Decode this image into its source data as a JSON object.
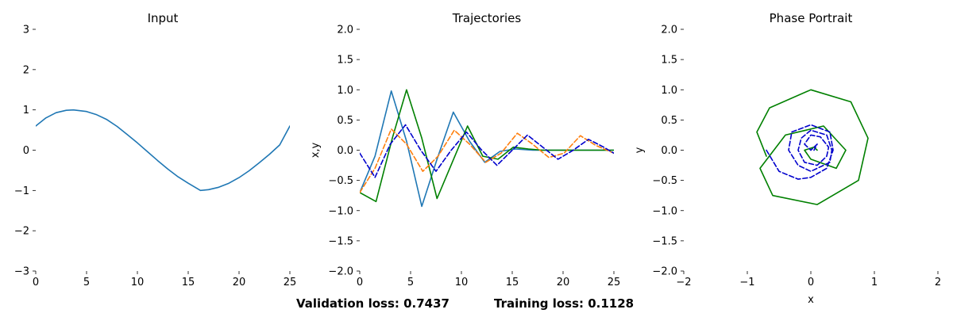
{
  "footer": {
    "validation": "Validation loss: 0.7437",
    "training": "Training loss: 0.1128"
  },
  "chart_data": [
    {
      "type": "line",
      "title": "Input",
      "xlabel": "",
      "ylabel": "",
      "xlim": [
        0,
        25
      ],
      "ylim": [
        -3,
        3
      ],
      "xticks": [
        0,
        5,
        10,
        15,
        20,
        25
      ],
      "xtick_labels": [
        "0",
        "5",
        "10",
        "15",
        "20",
        "25"
      ],
      "yticks": [
        -3,
        -2,
        -1,
        0,
        1,
        2,
        3
      ],
      "ytick_labels": [
        "−3",
        "−2",
        "−1",
        "0",
        "1",
        "2",
        "3"
      ],
      "grid": false,
      "series": [
        {
          "color": "#1f77b4",
          "dash": "solid",
          "x": [
            0,
            1,
            2,
            3,
            3.7,
            5,
            6,
            7,
            8,
            9,
            10,
            11,
            12,
            13,
            14,
            15,
            16.2,
            17,
            18,
            19,
            20,
            21,
            22,
            23,
            24,
            25
          ],
          "y": [
            0.6,
            0.8,
            0.93,
            0.99,
            1.0,
            0.96,
            0.88,
            0.76,
            0.59,
            0.39,
            0.18,
            -0.04,
            -0.26,
            -0.47,
            -0.66,
            -0.82,
            -1.0,
            -0.98,
            -0.92,
            -0.82,
            -0.68,
            -0.51,
            -0.31,
            -0.1,
            0.13,
            0.6
          ]
        }
      ]
    },
    {
      "type": "line",
      "title": "Trajectories",
      "xlabel": "",
      "ylabel": "x,y",
      "xlim": [
        0,
        25
      ],
      "ylim": [
        -2,
        2
      ],
      "xticks": [
        0,
        5,
        10,
        15,
        20,
        25
      ],
      "xtick_labels": [
        "0",
        "5",
        "10",
        "15",
        "20",
        "25"
      ],
      "yticks": [
        -2,
        -1.5,
        -1,
        -0.5,
        0,
        0.5,
        1,
        1.5,
        2
      ],
      "ytick_labels": [
        "−2.0",
        "−1.5",
        "−1.0",
        "−0.5",
        "0.0",
        "0.5",
        "1.0",
        "1.5",
        "2.0"
      ],
      "grid": false,
      "series": [
        {
          "color": "#1f77b4",
          "dash": "solid",
          "x": [
            0,
            1.5,
            3.1,
            4.6,
            6.1,
            7.6,
            9.2,
            10.8,
            12.3,
            13.8,
            15.3,
            17,
            19,
            21,
            23,
            25
          ],
          "y": [
            -0.7,
            -0.1,
            0.98,
            0.15,
            -0.93,
            -0.15,
            0.63,
            0.15,
            -0.2,
            -0.02,
            0.02,
            0.0,
            0.0,
            0.0,
            0.0,
            0.0
          ]
        },
        {
          "color": "#008000",
          "dash": "solid",
          "x": [
            0,
            1.6,
            3.2,
            4.6,
            6.1,
            7.6,
            9.1,
            10.6,
            12.1,
            13.6,
            15.1,
            16.6,
            18,
            20,
            22,
            25
          ],
          "y": [
            -0.7,
            -0.85,
            0.2,
            1.0,
            0.2,
            -0.8,
            -0.2,
            0.4,
            -0.1,
            -0.15,
            0.05,
            0.02,
            0.0,
            0.0,
            0.0,
            0.0
          ]
        },
        {
          "color": "#ff7f0e",
          "dash": "dashed",
          "x": [
            0,
            1.5,
            3.1,
            4.6,
            6.2,
            7.7,
            9.3,
            10.8,
            12.4,
            13.9,
            15.5,
            17,
            18.6,
            20.1,
            21.7,
            23.2,
            25
          ],
          "y": [
            -0.7,
            -0.3,
            0.35,
            0.1,
            -0.35,
            -0.1,
            0.33,
            0.1,
            -0.2,
            -0.05,
            0.28,
            0.1,
            -0.12,
            -0.05,
            0.24,
            0.08,
            -0.05
          ]
        },
        {
          "color": "#0000cd",
          "dash": "dashed",
          "x": [
            0,
            1.5,
            3.0,
            4.5,
            6.0,
            7.5,
            9.0,
            10.5,
            12.0,
            13.5,
            15.0,
            16.5,
            18.0,
            19.5,
            21.0,
            22.5,
            24.0,
            25
          ],
          "y": [
            -0.05,
            -0.45,
            0.1,
            0.42,
            0.0,
            -0.35,
            0.0,
            0.3,
            0.0,
            -0.25,
            0.0,
            0.25,
            0.05,
            -0.15,
            0.0,
            0.18,
            0.05,
            -0.05
          ]
        }
      ]
    },
    {
      "type": "line",
      "title": "Phase Portrait",
      "xlabel": "x",
      "ylabel": "y",
      "xlim": [
        -2,
        2
      ],
      "ylim": [
        -2,
        2
      ],
      "xticks": [
        -2,
        -1,
        0,
        1,
        2
      ],
      "xtick_labels": [
        "−2",
        "−1",
        "0",
        "1",
        "2"
      ],
      "yticks": [
        -2,
        -1.5,
        -1,
        -0.5,
        0,
        0.5,
        1,
        1.5,
        2
      ],
      "ytick_labels": [
        "−2.0",
        "−1.5",
        "−1.0",
        "−0.5",
        "0.0",
        "0.5",
        "1.0",
        "1.5",
        "2.0"
      ],
      "grid": false,
      "series": [
        {
          "color": "#008000",
          "dash": "solid",
          "x": [
            -0.7,
            -0.85,
            -0.65,
            0.0,
            0.63,
            0.9,
            0.75,
            0.1,
            -0.6,
            -0.8,
            -0.4,
            0.2,
            0.55,
            0.4,
            0.0,
            -0.1,
            0.05,
            0.1
          ],
          "y": [
            -0.1,
            0.3,
            0.7,
            1.0,
            0.8,
            0.2,
            -0.5,
            -0.9,
            -0.75,
            -0.3,
            0.25,
            0.4,
            0.0,
            -0.3,
            -0.15,
            0.0,
            0.05,
            0.0
          ]
        },
        {
          "color": "#0000cd",
          "dash": "dashed",
          "x": [
            -0.7,
            -0.5,
            -0.2,
            0.0,
            0.25,
            0.35,
            0.3,
            0.0,
            -0.3,
            -0.35,
            -0.2,
            0.0,
            0.3,
            0.33,
            0.25,
            0.0,
            -0.15,
            -0.2,
            -0.1,
            0.1,
            0.25,
            0.28,
            0.15,
            0.0,
            -0.1,
            0.0,
            0.1,
            0.05
          ],
          "y": [
            0.0,
            -0.35,
            -0.48,
            -0.45,
            -0.3,
            0.0,
            0.3,
            0.42,
            0.3,
            0.0,
            -0.25,
            -0.35,
            -0.2,
            0.0,
            0.25,
            0.33,
            0.2,
            0.0,
            -0.2,
            -0.25,
            -0.1,
            0.05,
            0.22,
            0.25,
            0.1,
            0.0,
            0.1,
            0.0
          ]
        }
      ]
    }
  ]
}
